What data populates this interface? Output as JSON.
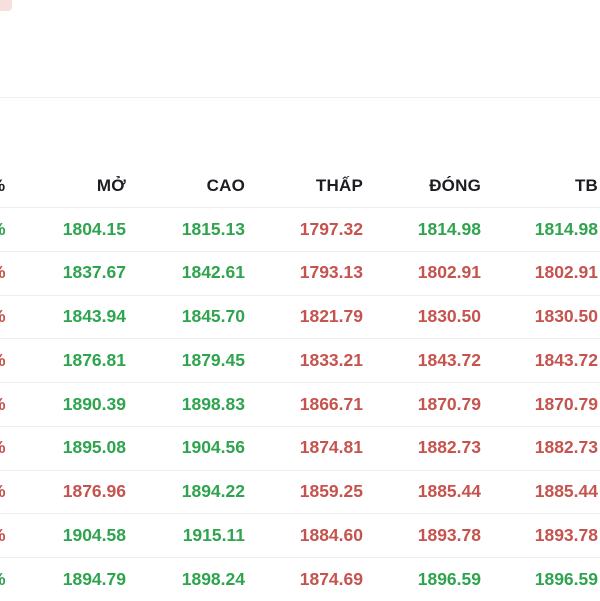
{
  "colors": {
    "up": "#2fa44f",
    "down": "#c5534e",
    "header_text": "#1b1d22",
    "row_divider": "#efefef"
  },
  "table": {
    "columns": [
      {
        "key": "pct",
        "label": "%"
      },
      {
        "key": "mo",
        "label": "MỞ"
      },
      {
        "key": "cao",
        "label": "CAO"
      },
      {
        "key": "thap",
        "label": "THẤP"
      },
      {
        "key": "dong",
        "label": "ĐÓNG"
      },
      {
        "key": "tb",
        "label": "TB"
      }
    ],
    "rows": [
      {
        "pct_trend": "up",
        "cells": [
          {
            "value": "1804.15",
            "trend": "up"
          },
          {
            "value": "1815.13",
            "trend": "up"
          },
          {
            "value": "1797.32",
            "trend": "down"
          },
          {
            "value": "1814.98",
            "trend": "up"
          },
          {
            "value": "1814.98",
            "trend": "up"
          }
        ]
      },
      {
        "pct_trend": "down",
        "cells": [
          {
            "value": "1837.67",
            "trend": "up"
          },
          {
            "value": "1842.61",
            "trend": "up"
          },
          {
            "value": "1793.13",
            "trend": "down"
          },
          {
            "value": "1802.91",
            "trend": "down"
          },
          {
            "value": "1802.91",
            "trend": "down"
          }
        ]
      },
      {
        "pct_trend": "down",
        "cells": [
          {
            "value": "1843.94",
            "trend": "up"
          },
          {
            "value": "1845.70",
            "trend": "up"
          },
          {
            "value": "1821.79",
            "trend": "down"
          },
          {
            "value": "1830.50",
            "trend": "down"
          },
          {
            "value": "1830.50",
            "trend": "down"
          }
        ]
      },
      {
        "pct_trend": "down",
        "cells": [
          {
            "value": "1876.81",
            "trend": "up"
          },
          {
            "value": "1879.45",
            "trend": "up"
          },
          {
            "value": "1833.21",
            "trend": "down"
          },
          {
            "value": "1843.72",
            "trend": "down"
          },
          {
            "value": "1843.72",
            "trend": "down"
          }
        ]
      },
      {
        "pct_trend": "down",
        "cells": [
          {
            "value": "1890.39",
            "trend": "up"
          },
          {
            "value": "1898.83",
            "trend": "up"
          },
          {
            "value": "1866.71",
            "trend": "down"
          },
          {
            "value": "1870.79",
            "trend": "down"
          },
          {
            "value": "1870.79",
            "trend": "down"
          }
        ]
      },
      {
        "pct_trend": "down",
        "cells": [
          {
            "value": "1895.08",
            "trend": "up"
          },
          {
            "value": "1904.56",
            "trend": "up"
          },
          {
            "value": "1874.81",
            "trend": "down"
          },
          {
            "value": "1882.73",
            "trend": "down"
          },
          {
            "value": "1882.73",
            "trend": "down"
          }
        ]
      },
      {
        "pct_trend": "down",
        "cells": [
          {
            "value": "1876.96",
            "trend": "down"
          },
          {
            "value": "1894.22",
            "trend": "up"
          },
          {
            "value": "1859.25",
            "trend": "down"
          },
          {
            "value": "1885.44",
            "trend": "down"
          },
          {
            "value": "1885.44",
            "trend": "down"
          }
        ]
      },
      {
        "pct_trend": "down",
        "cells": [
          {
            "value": "1904.58",
            "trend": "up"
          },
          {
            "value": "1915.11",
            "trend": "up"
          },
          {
            "value": "1884.60",
            "trend": "down"
          },
          {
            "value": "1893.78",
            "trend": "down"
          },
          {
            "value": "1893.78",
            "trend": "down"
          }
        ]
      },
      {
        "pct_trend": "up",
        "cells": [
          {
            "value": "1894.79",
            "trend": "up"
          },
          {
            "value": "1898.24",
            "trend": "up"
          },
          {
            "value": "1874.69",
            "trend": "down"
          },
          {
            "value": "1896.59",
            "trend": "up"
          },
          {
            "value": "1896.59",
            "trend": "up"
          }
        ]
      }
    ]
  }
}
